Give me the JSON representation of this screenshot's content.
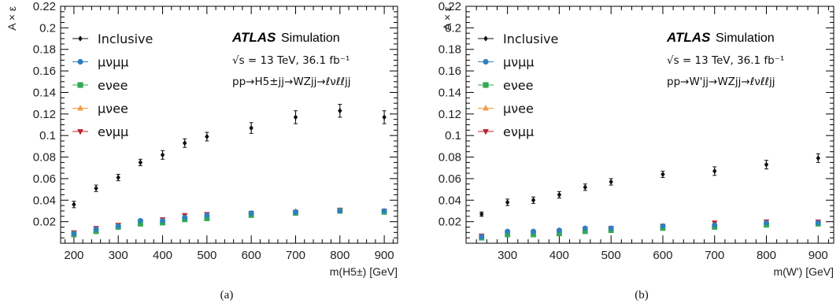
{
  "colors": {
    "Inclusive": "#111111",
    "mu_nu_mumu": "#2f7fc1",
    "e_nu_ee": "#33aa55",
    "mu_nu_ee": "#f59a45",
    "e_nu_mumu": "#b8232f"
  },
  "chart_data": [
    {
      "type": "scatter",
      "caption": "(a)",
      "ylabel": "A × ε",
      "xlabel": "m(H5±) [GeV]",
      "xlim": [
        170,
        930
      ],
      "ylim": [
        0,
        0.22
      ],
      "xticks": [
        200,
        300,
        400,
        500,
        600,
        700,
        800,
        900
      ],
      "yticks": [
        0.02,
        0.04,
        0.06,
        0.08,
        0.1,
        0.12,
        0.14,
        0.16,
        0.18,
        0.2,
        0.22
      ],
      "atlas_label": "ATLAS",
      "atlas_sub": "Simulation",
      "annotations": [
        "√s = 13 TeV, 36.1 fb⁻¹",
        "pp→H5±jj→WZjj→ℓνℓℓjj"
      ],
      "x": [
        200,
        250,
        300,
        350,
        400,
        450,
        500,
        600,
        700,
        800,
        900
      ],
      "series": [
        {
          "name": "Inclusive",
          "color_key": "Inclusive",
          "marker": "diamond",
          "values": [
            0.036,
            0.051,
            0.061,
            0.075,
            0.082,
            0.093,
            0.099,
            0.107,
            0.117,
            0.123,
            0.117
          ],
          "errors": [
            0.003,
            0.003,
            0.003,
            0.003,
            0.004,
            0.004,
            0.004,
            0.005,
            0.006,
            0.006,
            0.006
          ]
        },
        {
          "name": "μνμμ",
          "color_key": "mu_nu_mumu",
          "marker": "circle",
          "values": [
            0.009,
            0.013,
            0.016,
            0.021,
            0.021,
            0.024,
            0.026,
            0.028,
            0.029,
            0.03,
            0.03
          ],
          "errors": [
            0.001,
            0.001,
            0.001,
            0.001,
            0.001,
            0.001,
            0.001,
            0.002,
            0.002,
            0.002,
            0.002
          ]
        },
        {
          "name": "eνee",
          "color_key": "e_nu_ee",
          "marker": "square",
          "values": [
            0.008,
            0.011,
            0.015,
            0.018,
            0.019,
            0.022,
            0.023,
            0.026,
            0.028,
            0.03,
            0.029
          ],
          "errors": [
            0.001,
            0.001,
            0.001,
            0.001,
            0.001,
            0.001,
            0.001,
            0.002,
            0.002,
            0.002,
            0.002
          ]
        },
        {
          "name": "μνee",
          "color_key": "mu_nu_ee",
          "marker": "triangle-up",
          "values": [
            0.01,
            0.012,
            0.017,
            0.019,
            0.02,
            0.023,
            0.025,
            0.027,
            0.03,
            0.031,
            0.029
          ],
          "errors": [
            0.001,
            0.001,
            0.001,
            0.001,
            0.001,
            0.001,
            0.001,
            0.002,
            0.002,
            0.002,
            0.002
          ]
        },
        {
          "name": "eνμμ",
          "color_key": "e_nu_mumu",
          "marker": "triangle-down",
          "values": [
            0.01,
            0.014,
            0.017,
            0.02,
            0.022,
            0.026,
            0.027,
            0.028,
            0.029,
            0.031,
            0.03
          ],
          "errors": [
            0.001,
            0.001,
            0.001,
            0.001,
            0.001,
            0.001,
            0.001,
            0.002,
            0.002,
            0.002,
            0.002
          ]
        }
      ]
    },
    {
      "type": "scatter",
      "caption": "(b)",
      "ylabel": "A × ε",
      "xlabel": "m(W') [GeV]",
      "xlim": [
        220,
        930
      ],
      "ylim": [
        0,
        0.22
      ],
      "xticks": [
        300,
        400,
        500,
        600,
        700,
        800,
        900
      ],
      "yticks": [
        0.02,
        0.04,
        0.06,
        0.08,
        0.1,
        0.12,
        0.14,
        0.16,
        0.18,
        0.2,
        0.22
      ],
      "atlas_label": "ATLAS",
      "atlas_sub": "Simulation",
      "annotations": [
        "√s = 13 TeV, 36.1 fb⁻¹",
        "pp→W'jj→WZjj→ℓνℓℓjj"
      ],
      "x": [
        250,
        300,
        350,
        400,
        450,
        500,
        600,
        700,
        800,
        900
      ],
      "series": [
        {
          "name": "Inclusive",
          "color_key": "Inclusive",
          "marker": "diamond",
          "values": [
            0.027,
            0.038,
            0.04,
            0.045,
            0.052,
            0.057,
            0.064,
            0.067,
            0.073,
            0.079
          ],
          "errors": [
            0.002,
            0.003,
            0.003,
            0.003,
            0.003,
            0.003,
            0.003,
            0.004,
            0.004,
            0.004
          ]
        },
        {
          "name": "μνμμ",
          "color_key": "mu_nu_mumu",
          "marker": "circle",
          "values": [
            0.006,
            0.011,
            0.011,
            0.012,
            0.014,
            0.014,
            0.016,
            0.017,
            0.019,
            0.019
          ],
          "errors": [
            0.001,
            0.001,
            0.001,
            0.001,
            0.001,
            0.001,
            0.002,
            0.002,
            0.002,
            0.002
          ]
        },
        {
          "name": "eνee",
          "color_key": "e_nu_ee",
          "marker": "square",
          "values": [
            0.005,
            0.008,
            0.008,
            0.009,
            0.011,
            0.012,
            0.014,
            0.015,
            0.017,
            0.018
          ],
          "errors": [
            0.001,
            0.001,
            0.001,
            0.001,
            0.001,
            0.001,
            0.002,
            0.002,
            0.002,
            0.002
          ]
        },
        {
          "name": "μνee",
          "color_key": "mu_nu_ee",
          "marker": "triangle-up",
          "values": [
            0.006,
            0.009,
            0.009,
            0.01,
            0.012,
            0.013,
            0.015,
            0.016,
            0.018,
            0.019
          ],
          "errors": [
            0.001,
            0.001,
            0.001,
            0.001,
            0.001,
            0.001,
            0.002,
            0.002,
            0.002,
            0.002
          ]
        },
        {
          "name": "eνμμ",
          "color_key": "e_nu_mumu",
          "marker": "triangle-down",
          "values": [
            0.007,
            0.01,
            0.01,
            0.011,
            0.013,
            0.014,
            0.016,
            0.019,
            0.02,
            0.02
          ],
          "errors": [
            0.001,
            0.001,
            0.001,
            0.001,
            0.001,
            0.001,
            0.002,
            0.002,
            0.002,
            0.002
          ]
        }
      ]
    }
  ]
}
